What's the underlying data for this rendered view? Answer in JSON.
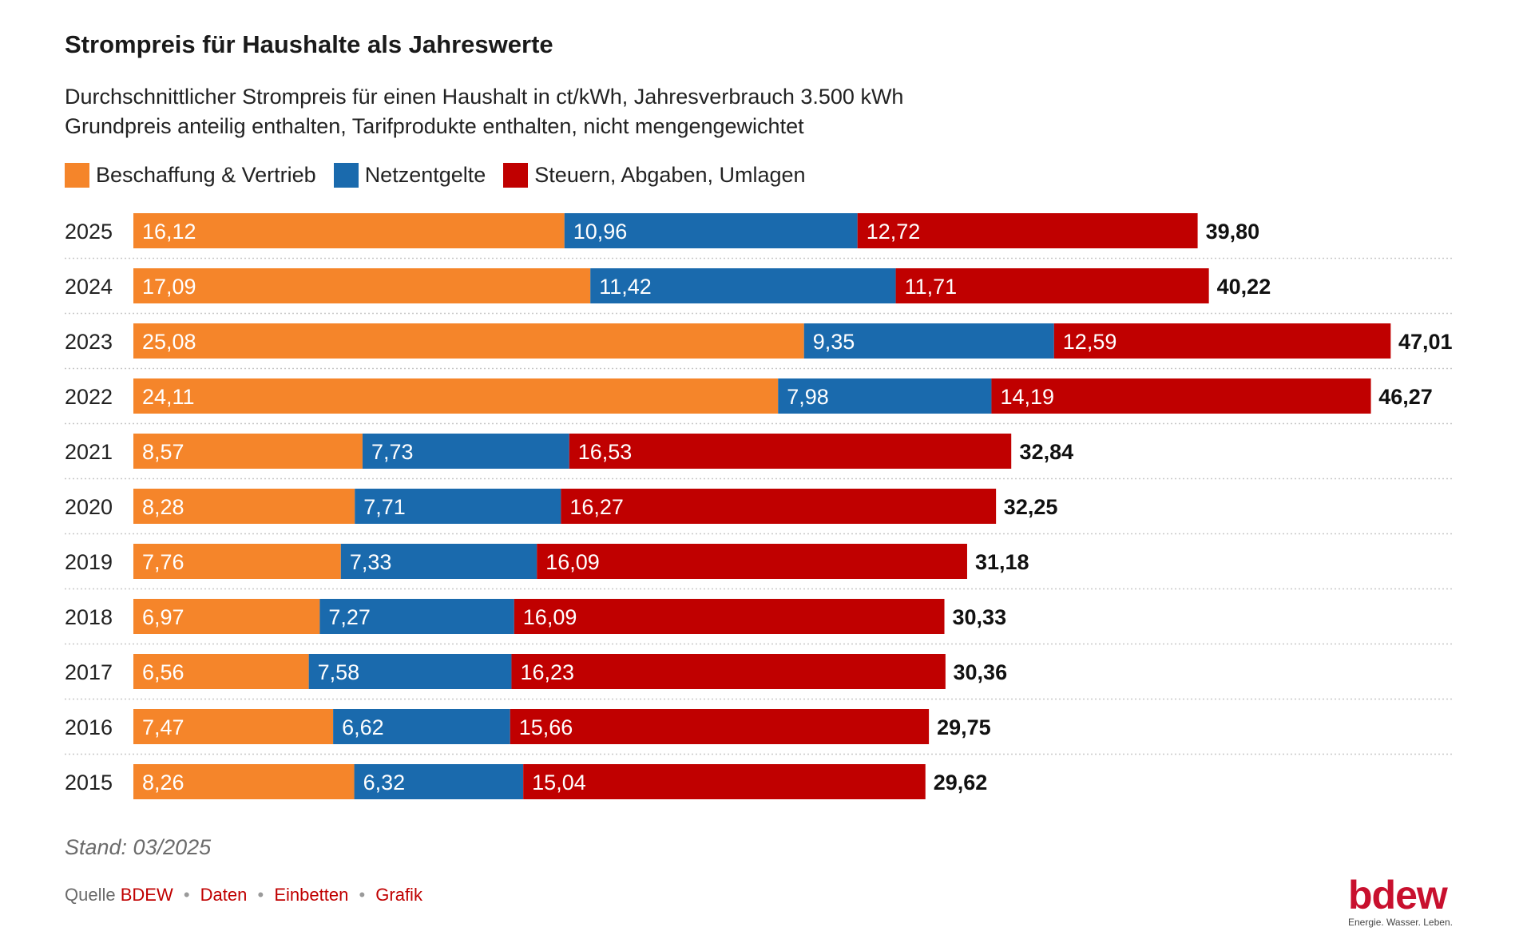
{
  "title": "Strompreis für Haushalte als Jahreswerte",
  "subtitle_lines": [
    "Durchschnittlicher Strompreis für einen Haushalt in ct/kWh, Jahresverbrauch 3.500 kWh",
    "Grundpreis anteilig enthalten, Tarifprodukte enthalten, nicht mengengewichtet"
  ],
  "legend": [
    {
      "label": "Beschaffung & Vertrieb",
      "color": "#f5852a"
    },
    {
      "label": "Netzentgelte",
      "color": "#1a6aad"
    },
    {
      "label": "Steuern, Abgaben, Umlagen",
      "color": "#c00000"
    }
  ],
  "chart_data": {
    "type": "bar",
    "orientation": "horizontal",
    "stacked": true,
    "categories": [
      "2025",
      "2024",
      "2023",
      "2022",
      "2021",
      "2020",
      "2019",
      "2018",
      "2017",
      "2016",
      "2015"
    ],
    "series": [
      {
        "name": "Beschaffung & Vertrieb",
        "color": "#f5852a",
        "values": [
          16.12,
          17.09,
          25.08,
          24.11,
          8.57,
          8.28,
          7.76,
          6.97,
          6.56,
          7.47,
          8.26
        ],
        "labels": [
          "16,12",
          "17,09",
          "25,08",
          "24,11",
          "8,57",
          "8,28",
          "7,76",
          "6,97",
          "6,56",
          "7,47",
          "8,26"
        ]
      },
      {
        "name": "Netzentgelte",
        "color": "#1a6aad",
        "values": [
          10.96,
          11.42,
          9.35,
          7.98,
          7.73,
          7.71,
          7.33,
          7.27,
          7.58,
          6.62,
          6.32
        ],
        "labels": [
          "10,96",
          "11,42",
          "9,35",
          "7,98",
          "7,73",
          "7,71",
          "7,33",
          "7,27",
          "7,58",
          "6,62",
          "6,32"
        ]
      },
      {
        "name": "Steuern, Abgaben, Umlagen",
        "color": "#c00000",
        "values": [
          12.72,
          11.71,
          12.59,
          14.19,
          16.53,
          16.27,
          16.09,
          16.09,
          16.23,
          15.66,
          15.04
        ],
        "labels": [
          "12,72",
          "11,71",
          "12,59",
          "14,19",
          "16,53",
          "16,27",
          "16,09",
          "16,09",
          "16,23",
          "15,66",
          "15,04"
        ]
      }
    ],
    "totals": [
      39.8,
      40.22,
      47.01,
      46.27,
      32.84,
      32.25,
      31.18,
      30.33,
      30.36,
      29.75,
      29.62
    ],
    "total_labels": [
      "39,80",
      "40,22",
      "47,01",
      "46,27",
      "32,84",
      "32,25",
      "31,18",
      "30,33",
      "30,36",
      "29,75",
      "29,62"
    ],
    "xlim": [
      0,
      47.01
    ],
    "xlabel": "",
    "ylabel": "",
    "grid": false,
    "legend_position": "top-left"
  },
  "footer": {
    "stand": "Stand: 03/2025",
    "source_prefix": "Quelle",
    "source_name": "BDEW",
    "links": [
      "Daten",
      "Einbetten",
      "Grafik"
    ]
  },
  "logo": {
    "word": "bdew",
    "tagline": "Energie. Wasser. Leben."
  }
}
